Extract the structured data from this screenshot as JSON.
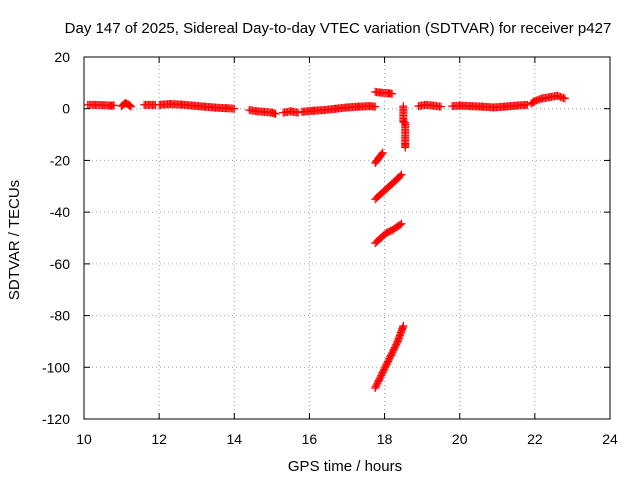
{
  "chart_data": {
    "type": "scatter",
    "title": "Day 147 of 2025, Sidereal Day-to-day VTEC variation (SDTVAR) for receiver p427",
    "xlabel": "GPS time / hours",
    "ylabel": "SDTVAR / TECUs",
    "xlim": [
      10,
      24
    ],
    "ylim": [
      -120,
      20
    ],
    "xticks": [
      10,
      12,
      14,
      16,
      18,
      20,
      22,
      24
    ],
    "yticks": [
      20,
      0,
      -20,
      -40,
      -60,
      -80,
      -100,
      -120
    ],
    "grid": true,
    "legend": "none",
    "series": [
      {
        "name": "SDTVAR",
        "color": "#ff0000",
        "marker": "plus",
        "segments": [
          {
            "x": [
              10.1,
              10.3,
              10.5,
              10.7,
              10.8
            ],
            "y": [
              1.5,
              1.5,
              1.4,
              1.2,
              1.3
            ]
          },
          {
            "x": [
              11.0,
              11.1,
              11.2,
              11.25
            ],
            "y": [
              1.0,
              2.2,
              1.5,
              0.8
            ]
          },
          {
            "x": [
              11.6,
              11.9
            ],
            "y": [
              1.5,
              1.5
            ]
          },
          {
            "x": [
              12.0,
              12.3,
              12.6,
              12.9,
              13.2,
              13.5,
              13.8,
              14.0
            ],
            "y": [
              1.5,
              1.8,
              1.6,
              1.2,
              0.8,
              0.4,
              0.2,
              0.0
            ]
          },
          {
            "x": [
              14.4,
              14.6,
              14.8,
              15.0,
              15.1
            ],
            "y": [
              -0.5,
              -1.0,
              -1.2,
              -1.5,
              -2.0
            ]
          },
          {
            "x": [
              15.3,
              15.5,
              15.7
            ],
            "y": [
              -1.5,
              -1.0,
              -1.5
            ]
          },
          {
            "x": [
              15.8,
              16.1,
              16.4,
              16.7,
              17.0,
              17.3,
              17.6,
              17.75
            ],
            "y": [
              -1.2,
              -0.8,
              -0.5,
              0.0,
              0.5,
              0.8,
              1.0,
              0.8
            ]
          },
          {
            "x": [
              17.75,
              17.9,
              18.1,
              18.2
            ],
            "y": [
              6.5,
              6.2,
              6.0,
              5.8
            ]
          },
          {
            "x": [
              17.75,
              17.85,
              17.95
            ],
            "y": [
              -21.0,
              -19.0,
              -17.0
            ]
          },
          {
            "x": [
              17.75,
              17.9,
              18.05,
              18.2,
              18.35,
              18.45
            ],
            "y": [
              -35.0,
              -33.0,
              -31.0,
              -29.0,
              -27.0,
              -25.5
            ]
          },
          {
            "x": [
              17.75,
              17.9,
              18.05,
              18.2,
              18.35,
              18.45
            ],
            "y": [
              -52.0,
              -50.0,
              -48.0,
              -47.0,
              -45.5,
              -44.5
            ]
          },
          {
            "x": [
              17.75,
              17.85,
              17.95,
              18.05,
              18.15,
              18.25,
              18.35,
              18.45,
              18.5
            ],
            "y": [
              -108.0,
              -105.0,
              -102.0,
              -99.0,
              -96.0,
              -93.0,
              -90.0,
              -86.0,
              -84.0
            ]
          },
          {
            "x": [
              18.5,
              18.5,
              18.55,
              18.55,
              18.55
            ],
            "y": [
              1.0,
              -5.0,
              -5.5,
              -13.5,
              -15.0
            ]
          },
          {
            "x": [
              18.9,
              19.1,
              19.3,
              19.5
            ],
            "y": [
              1.0,
              1.5,
              1.2,
              0.8
            ]
          },
          {
            "x": [
              19.8,
              20.0,
              20.3,
              20.6,
              20.9,
              21.2,
              21.5,
              21.8
            ],
            "y": [
              1.0,
              1.2,
              1.0,
              0.8,
              0.5,
              0.8,
              1.2,
              1.5
            ]
          },
          {
            "x": [
              21.9,
              22.0,
              22.2,
              22.4,
              22.6,
              22.8
            ],
            "y": [
              2.0,
              3.0,
              4.0,
              4.5,
              5.0,
              4.0
            ]
          }
        ]
      }
    ]
  }
}
